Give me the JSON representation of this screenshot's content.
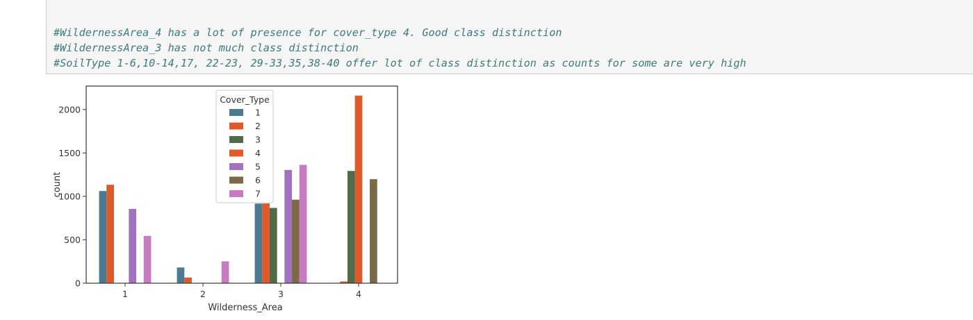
{
  "notebook": {
    "comments": [
      "#WildernessArea_4 has a lot of presence for cover_type 4. Good class distinction",
      "#WildernessArea_3 has not much class distinction",
      "#SoilType 1-6,10-14,17, 22-23, 29-33,35,38-40 offer lot of class distinction as counts for some are very high"
    ]
  },
  "chart_data": {
    "type": "bar",
    "title": "",
    "xlabel": "Wilderness_Area",
    "ylabel": "count",
    "categories": [
      "1",
      "2",
      "3",
      "4"
    ],
    "yticks": [
      0,
      500,
      1000,
      1500,
      2000
    ],
    "ylim": [
      0,
      2270
    ],
    "grid": false,
    "legend": {
      "title": "Cover_Type",
      "placement": "upper-center"
    },
    "series": [
      {
        "name": "1",
        "color": "#4c7a91",
        "values": [
          1062,
          181,
          917,
          0
        ]
      },
      {
        "name": "2",
        "color": "#dd5a2b",
        "values": [
          1134,
          66,
          919,
          20
        ]
      },
      {
        "name": "3",
        "color": "#4f6b48",
        "values": [
          0,
          0,
          867,
          1293
        ]
      },
      {
        "name": "4",
        "color": "#dd5a2b",
        "values": [
          0,
          0,
          0,
          2160
        ]
      },
      {
        "name": "5",
        "color": "#a072c0",
        "values": [
          856,
          0,
          1304,
          0
        ]
      },
      {
        "name": "6",
        "color": "#7a6a45",
        "values": [
          0,
          0,
          962,
          1198
        ]
      },
      {
        "name": "7",
        "color": "#c77cc2",
        "values": [
          545,
          252,
          1363,
          0
        ]
      }
    ]
  }
}
